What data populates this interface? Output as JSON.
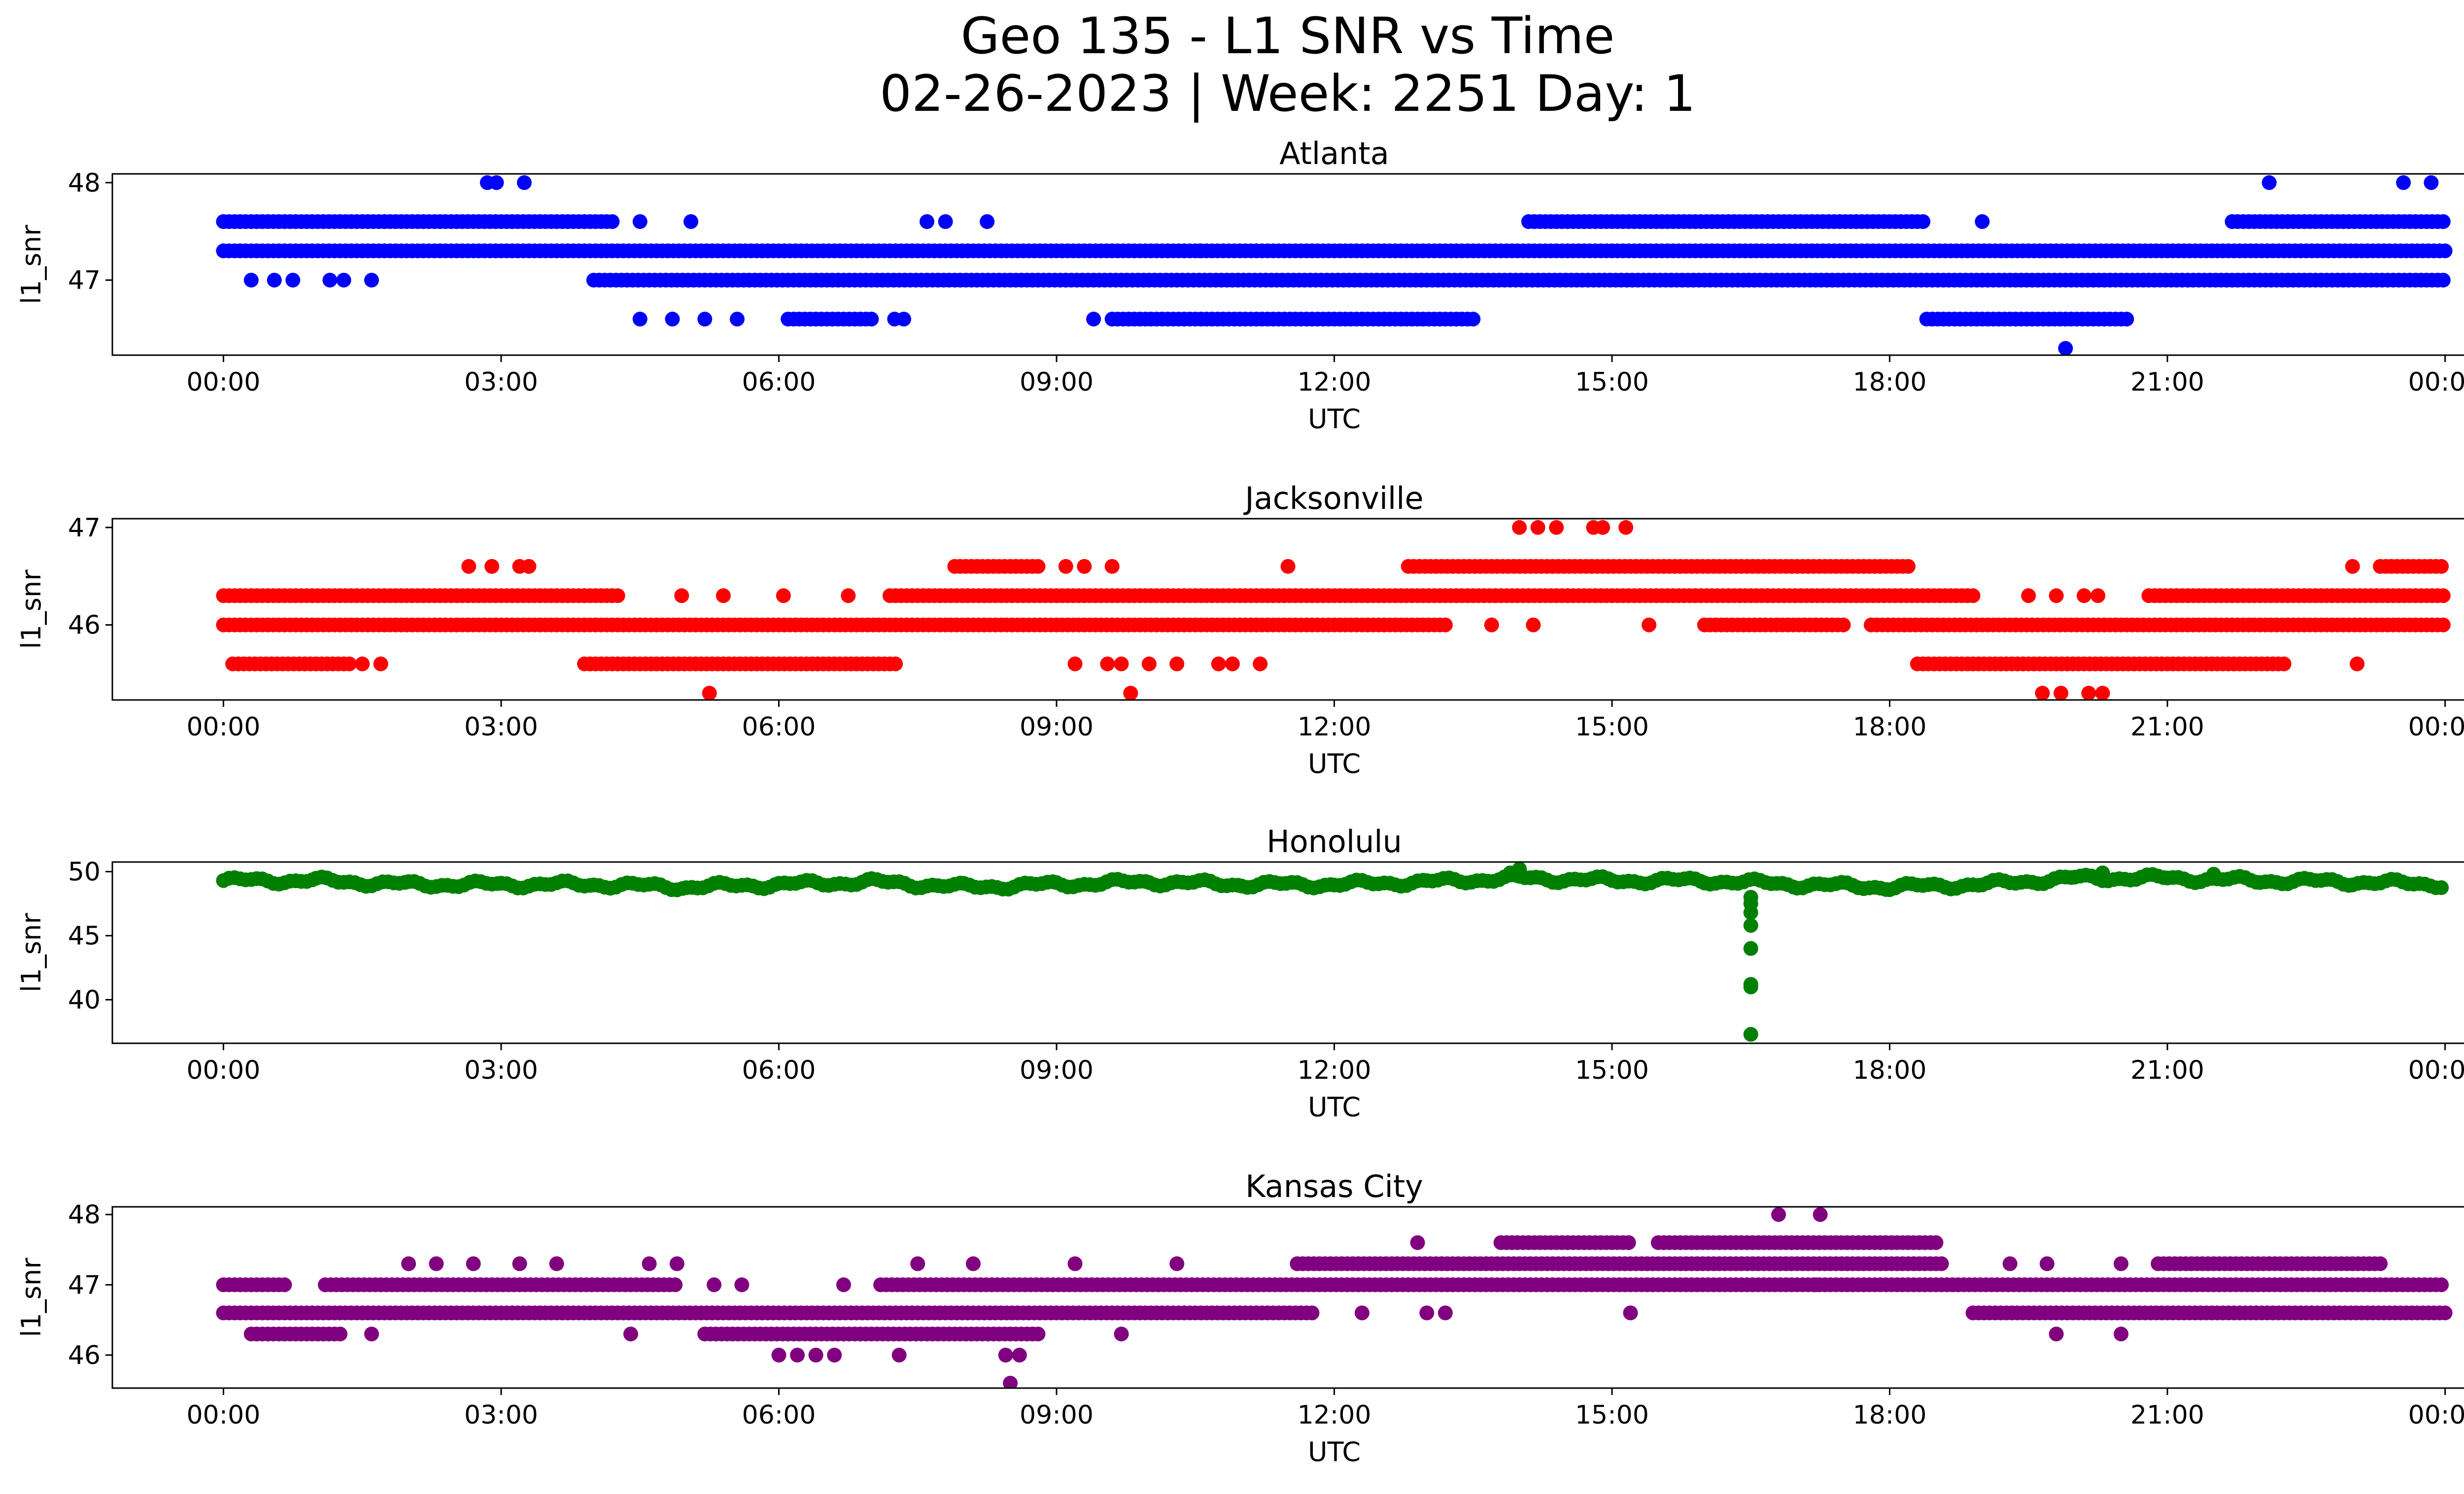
{
  "figure": {
    "title_line1": "Geo 135 - L1 SNR vs Time",
    "title_line2": "02-26-2023 | Week: 2251 Day: 1"
  },
  "chart_data": [
    {
      "type": "scatter",
      "title": "Atlanta",
      "xlabel": "UTC",
      "ylabel": "l1_snr",
      "color": "#0000ff",
      "x_ticks": [
        "00:00",
        "03:00",
        "06:00",
        "09:00",
        "12:00",
        "15:00",
        "18:00",
        "21:00",
        "00:00"
      ],
      "y_ticks": [
        47,
        48
      ],
      "xlim_hours": [
        -1.2,
        25.2
      ],
      "ylim": [
        46.23,
        48.09
      ],
      "bands": [
        {
          "y": 47.6,
          "segments": [
            [
              0.0,
              4.2
            ],
            [
              14.1,
              18.4
            ],
            [
              21.7,
              24.0
            ]
          ]
        },
        {
          "y": 47.3,
          "segments": [
            [
              0.0,
              24.0
            ]
          ]
        },
        {
          "y": 47.0,
          "segments": [
            [
              4.0,
              24.0
            ]
          ]
        },
        {
          "y": 46.6,
          "segments": [
            [
              6.1,
              7.0
            ],
            [
              9.6,
              13.5
            ],
            [
              18.4,
              20.6
            ]
          ]
        }
      ],
      "points": [
        {
          "x": 2.85,
          "y": 48.0
        },
        {
          "x": 2.95,
          "y": 48.0
        },
        {
          "x": 3.25,
          "y": 48.0
        },
        {
          "x": 22.1,
          "y": 48.0
        },
        {
          "x": 23.55,
          "y": 48.0
        },
        {
          "x": 23.85,
          "y": 48.0
        },
        {
          "x": 0.3,
          "y": 47.0
        },
        {
          "x": 0.55,
          "y": 47.0
        },
        {
          "x": 0.75,
          "y": 47.0
        },
        {
          "x": 1.15,
          "y": 47.0
        },
        {
          "x": 1.3,
          "y": 47.0
        },
        {
          "x": 1.6,
          "y": 47.0
        },
        {
          "x": 4.5,
          "y": 47.6
        },
        {
          "x": 5.05,
          "y": 47.6
        },
        {
          "x": 7.6,
          "y": 47.6
        },
        {
          "x": 7.8,
          "y": 47.6
        },
        {
          "x": 8.25,
          "y": 47.6
        },
        {
          "x": 19.0,
          "y": 47.6
        },
        {
          "x": 10.55,
          "y": 47.3
        },
        {
          "x": 4.5,
          "y": 46.6
        },
        {
          "x": 4.85,
          "y": 46.6
        },
        {
          "x": 5.2,
          "y": 46.6
        },
        {
          "x": 5.55,
          "y": 46.6
        },
        {
          "x": 7.25,
          "y": 46.6
        },
        {
          "x": 7.35,
          "y": 46.6
        },
        {
          "x": 9.4,
          "y": 46.6
        },
        {
          "x": 19.9,
          "y": 46.3
        }
      ]
    },
    {
      "type": "scatter",
      "title": "Jacksonville",
      "xlabel": "UTC",
      "ylabel": "l1_snr",
      "color": "#ff0000",
      "x_ticks": [
        "00:00",
        "03:00",
        "06:00",
        "09:00",
        "12:00",
        "15:00",
        "18:00",
        "21:00",
        "00:00"
      ],
      "y_ticks": [
        46,
        47
      ],
      "xlim_hours": [
        -1.2,
        25.2
      ],
      "ylim": [
        45.23,
        47.09
      ],
      "bands": [
        {
          "y": 46.6,
          "segments": [
            [
              7.9,
              8.8
            ],
            [
              12.8,
              18.2
            ],
            [
              23.3,
              24.0
            ]
          ]
        },
        {
          "y": 46.3,
          "segments": [
            [
              0.0,
              4.3
            ],
            [
              7.2,
              18.9
            ],
            [
              20.8,
              24.0
            ]
          ]
        },
        {
          "y": 46.0,
          "segments": [
            [
              0.0,
              13.2
            ],
            [
              16.0,
              17.5
            ],
            [
              17.8,
              24.0
            ]
          ]
        },
        {
          "y": 45.6,
          "segments": [
            [
              0.1,
              1.4
            ],
            [
              3.9,
              7.3
            ],
            [
              18.3,
              22.3
            ]
          ]
        }
      ],
      "points": [
        {
          "x": 2.65,
          "y": 46.6
        },
        {
          "x": 2.9,
          "y": 46.6
        },
        {
          "x": 3.2,
          "y": 46.6
        },
        {
          "x": 3.3,
          "y": 46.6
        },
        {
          "x": 9.1,
          "y": 46.6
        },
        {
          "x": 9.3,
          "y": 46.6
        },
        {
          "x": 9.6,
          "y": 46.6
        },
        {
          "x": 11.5,
          "y": 46.6
        },
        {
          "x": 23.0,
          "y": 46.6
        },
        {
          "x": 14.0,
          "y": 47.0
        },
        {
          "x": 14.2,
          "y": 47.0
        },
        {
          "x": 14.4,
          "y": 47.0
        },
        {
          "x": 14.8,
          "y": 47.0
        },
        {
          "x": 14.9,
          "y": 47.0
        },
        {
          "x": 15.15,
          "y": 47.0
        },
        {
          "x": 4.95,
          "y": 46.3
        },
        {
          "x": 5.4,
          "y": 46.3
        },
        {
          "x": 6.05,
          "y": 46.3
        },
        {
          "x": 6.75,
          "y": 46.3
        },
        {
          "x": 19.5,
          "y": 46.3
        },
        {
          "x": 19.8,
          "y": 46.3
        },
        {
          "x": 20.1,
          "y": 46.3
        },
        {
          "x": 20.25,
          "y": 46.3
        },
        {
          "x": 13.7,
          "y": 46.0
        },
        {
          "x": 14.15,
          "y": 46.0
        },
        {
          "x": 15.4,
          "y": 46.0
        },
        {
          "x": 1.5,
          "y": 45.6
        },
        {
          "x": 1.7,
          "y": 45.6
        },
        {
          "x": 9.2,
          "y": 45.6
        },
        {
          "x": 9.55,
          "y": 45.6
        },
        {
          "x": 9.7,
          "y": 45.6
        },
        {
          "x": 10.0,
          "y": 45.6
        },
        {
          "x": 10.3,
          "y": 45.6
        },
        {
          "x": 10.75,
          "y": 45.6
        },
        {
          "x": 10.9,
          "y": 45.6
        },
        {
          "x": 11.2,
          "y": 45.6
        },
        {
          "x": 23.05,
          "y": 45.6
        },
        {
          "x": 5.25,
          "y": 45.3
        },
        {
          "x": 9.8,
          "y": 45.3
        },
        {
          "x": 19.65,
          "y": 45.3
        },
        {
          "x": 19.85,
          "y": 45.3
        },
        {
          "x": 20.15,
          "y": 45.3
        },
        {
          "x": 20.3,
          "y": 45.3
        }
      ]
    },
    {
      "type": "scatter",
      "title": "Honolulu",
      "xlabel": "UTC",
      "ylabel": "l1_snr",
      "color": "#008000",
      "x_ticks": [
        "00:00",
        "03:00",
        "06:00",
        "09:00",
        "12:00",
        "15:00",
        "18:00",
        "21:00",
        "00:00"
      ],
      "y_ticks": [
        40,
        45,
        50
      ],
      "xlim_hours": [
        -1.2,
        25.2
      ],
      "ylim": [
        36.6,
        50.75
      ],
      "band_points": [
        {
          "x": 0.0,
          "y": 49.3
        },
        {
          "x": 1.0,
          "y": 49.3
        },
        {
          "x": 2.0,
          "y": 49.0
        },
        {
          "x": 3.0,
          "y": 49.0
        },
        {
          "x": 4.0,
          "y": 49.0
        },
        {
          "x": 5.0,
          "y": 48.8
        },
        {
          "x": 6.0,
          "y": 49.0
        },
        {
          "x": 7.0,
          "y": 49.2
        },
        {
          "x": 8.0,
          "y": 48.8
        },
        {
          "x": 9.0,
          "y": 49.0
        },
        {
          "x": 10.0,
          "y": 49.2
        },
        {
          "x": 11.0,
          "y": 49.0
        },
        {
          "x": 12.0,
          "y": 49.0
        },
        {
          "x": 13.0,
          "y": 49.2
        },
        {
          "x": 14.0,
          "y": 49.5
        },
        {
          "x": 15.0,
          "y": 49.3
        },
        {
          "x": 16.0,
          "y": 49.3
        },
        {
          "x": 17.0,
          "y": 49.0
        },
        {
          "x": 18.0,
          "y": 48.8
        },
        {
          "x": 19.0,
          "y": 49.0
        },
        {
          "x": 20.0,
          "y": 49.5
        },
        {
          "x": 21.0,
          "y": 49.5
        },
        {
          "x": 22.0,
          "y": 49.3
        },
        {
          "x": 23.0,
          "y": 49.2
        },
        {
          "x": 24.0,
          "y": 49.0
        }
      ],
      "points": [
        {
          "x": 16.5,
          "y": 48.0
        },
        {
          "x": 16.5,
          "y": 47.5
        },
        {
          "x": 16.5,
          "y": 46.8
        },
        {
          "x": 16.5,
          "y": 45.8
        },
        {
          "x": 16.5,
          "y": 44.0
        },
        {
          "x": 16.5,
          "y": 41.2
        },
        {
          "x": 16.5,
          "y": 41.0
        },
        {
          "x": 16.5,
          "y": 37.3
        },
        {
          "x": 14.0,
          "y": 50.2
        },
        {
          "x": 13.9,
          "y": 49.9
        },
        {
          "x": 20.3,
          "y": 49.9
        },
        {
          "x": 21.5,
          "y": 49.8
        }
      ]
    },
    {
      "type": "scatter",
      "title": "Kansas City",
      "xlabel": "UTC",
      "ylabel": "l1_snr",
      "color": "#800080",
      "x_ticks": [
        "00:00",
        "03:00",
        "06:00",
        "09:00",
        "12:00",
        "15:00",
        "18:00",
        "21:00",
        "00:00"
      ],
      "y_ticks": [
        46,
        47,
        48
      ],
      "xlim_hours": [
        -1.2,
        25.2
      ],
      "ylim": [
        45.53,
        48.11
      ],
      "bands": [
        {
          "y": 47.6,
          "segments": [
            [
              13.8,
              15.2
            ],
            [
              15.5,
              18.5
            ]
          ]
        },
        {
          "y": 47.3,
          "segments": [
            [
              11.6,
              18.6
            ],
            [
              20.9,
              23.3
            ]
          ]
        },
        {
          "y": 47.0,
          "segments": [
            [
              0.0,
              0.7
            ],
            [
              1.1,
              4.9
            ],
            [
              7.1,
              24.0
            ]
          ]
        },
        {
          "y": 46.6,
          "segments": [
            [
              0.0,
              11.8
            ],
            [
              18.9,
              24.0
            ]
          ]
        },
        {
          "y": 46.3,
          "segments": [
            [
              0.3,
              1.3
            ],
            [
              5.2,
              8.8
            ]
          ]
        }
      ],
      "points": [
        {
          "x": 16.8,
          "y": 48.0
        },
        {
          "x": 17.25,
          "y": 48.0
        },
        {
          "x": 12.9,
          "y": 47.6
        },
        {
          "x": 2.0,
          "y": 47.3
        },
        {
          "x": 2.3,
          "y": 47.3
        },
        {
          "x": 2.7,
          "y": 47.3
        },
        {
          "x": 3.2,
          "y": 47.3
        },
        {
          "x": 3.6,
          "y": 47.3
        },
        {
          "x": 4.6,
          "y": 47.3
        },
        {
          "x": 4.9,
          "y": 47.3
        },
        {
          "x": 7.5,
          "y": 47.3
        },
        {
          "x": 8.1,
          "y": 47.3
        },
        {
          "x": 9.2,
          "y": 47.3
        },
        {
          "x": 10.3,
          "y": 47.3
        },
        {
          "x": 19.3,
          "y": 47.3
        },
        {
          "x": 19.7,
          "y": 47.3
        },
        {
          "x": 20.5,
          "y": 47.3
        },
        {
          "x": 5.3,
          "y": 47.0
        },
        {
          "x": 5.6,
          "y": 47.0
        },
        {
          "x": 6.7,
          "y": 47.0
        },
        {
          "x": 12.3,
          "y": 46.6
        },
        {
          "x": 13.0,
          "y": 46.6
        },
        {
          "x": 13.2,
          "y": 46.6
        },
        {
          "x": 15.2,
          "y": 46.6
        },
        {
          "x": 14.0,
          "y": 47.0
        },
        {
          "x": 17.2,
          "y": 47.0
        },
        {
          "x": 1.6,
          "y": 46.3
        },
        {
          "x": 4.4,
          "y": 46.3
        },
        {
          "x": 9.7,
          "y": 46.3
        },
        {
          "x": 19.8,
          "y": 46.3
        },
        {
          "x": 20.5,
          "y": 46.3
        },
        {
          "x": 6.0,
          "y": 46.0
        },
        {
          "x": 6.2,
          "y": 46.0
        },
        {
          "x": 6.4,
          "y": 46.0
        },
        {
          "x": 6.6,
          "y": 46.0
        },
        {
          "x": 7.3,
          "y": 46.0
        },
        {
          "x": 8.45,
          "y": 46.0
        },
        {
          "x": 8.6,
          "y": 46.0
        },
        {
          "x": 8.5,
          "y": 45.6
        }
      ]
    }
  ]
}
